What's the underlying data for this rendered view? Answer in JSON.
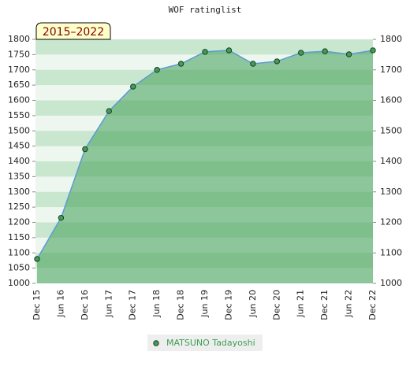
{
  "chart_data": {
    "type": "area",
    "title": "WOF ratinglist",
    "annotation": "2015–2022",
    "categories": [
      "Dec 15",
      "Jun 16",
      "Dec 16",
      "Jun 17",
      "Dec 17",
      "Jun 18",
      "Dec 18",
      "Jun 19",
      "Dec 19",
      "Jun 20",
      "Dec 20",
      "Jun 21",
      "Dec 21",
      "Jun 22",
      "Dec 22"
    ],
    "series": [
      {
        "name": "MATSUNO Tadayoshi",
        "color": "#3f9e56",
        "line_color": "#5b9bd5",
        "values": [
          1080,
          1215,
          1440,
          1565,
          1645,
          1700,
          1720,
          1759,
          1764,
          1720,
          1728,
          1756,
          1761,
          1751,
          1764
        ]
      }
    ],
    "ylim": [
      1000,
      1800
    ],
    "yticks": [
      1000,
      1050,
      1100,
      1150,
      1200,
      1250,
      1300,
      1350,
      1400,
      1450,
      1500,
      1550,
      1600,
      1650,
      1700,
      1750,
      1800
    ],
    "y2lim": [
      1000,
      1800
    ],
    "y2ticks": [
      1000,
      1100,
      1200,
      1300,
      1400,
      1500,
      1600,
      1700,
      1800
    ]
  }
}
